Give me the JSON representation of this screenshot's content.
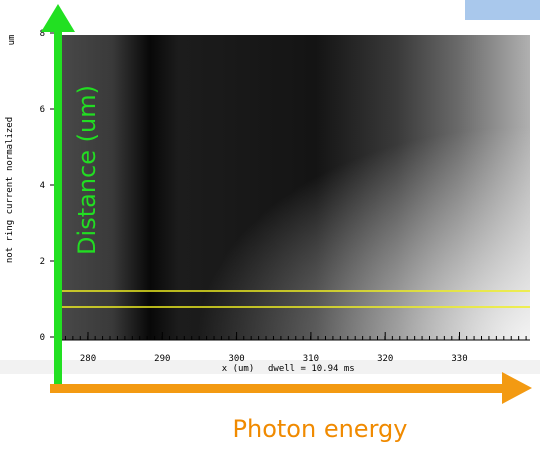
{
  "plot": {
    "y_axis_title": "not ring current normalized",
    "y_unit": "um",
    "y_ticks": [
      "0",
      "2",
      "4",
      "6",
      "8"
    ],
    "x_ticks": [
      "280",
      "290",
      "300",
      "310",
      "320",
      "330"
    ],
    "x_axis_title": "x (um)",
    "dwell": "dwell =  10.94 ms"
  },
  "annotations": {
    "vertical_arrow_label": "Distance (um)",
    "horizontal_arrow_label": "Photon energy"
  }
}
